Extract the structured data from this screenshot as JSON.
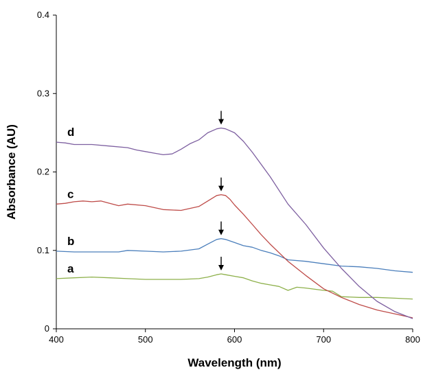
{
  "chart_data": {
    "type": "line",
    "title": "",
    "xlabel": "Wavelength (nm)",
    "ylabel": "Absorbance (AU)",
    "xlim": [
      400,
      800
    ],
    "ylim": [
      0,
      0.4
    ],
    "xticks": [
      "400",
      "500",
      "600",
      "700",
      "800"
    ],
    "yticks": [
      "0",
      "0.1",
      "0.2",
      "0.3",
      "0.4"
    ],
    "grid": false,
    "legend": "none",
    "series": [
      {
        "name": "a",
        "color": "#8DB04A",
        "x": [
          400,
          420,
          440,
          460,
          480,
          500,
          520,
          540,
          560,
          570,
          580,
          585,
          590,
          600,
          610,
          620,
          630,
          640,
          650,
          660,
          670,
          680,
          700,
          710,
          720,
          740,
          760,
          780,
          800
        ],
        "y": [
          0.064,
          0.065,
          0.066,
          0.065,
          0.064,
          0.063,
          0.063,
          0.063,
          0.064,
          0.066,
          0.069,
          0.07,
          0.069,
          0.067,
          0.065,
          0.061,
          0.058,
          0.056,
          0.054,
          0.049,
          0.053,
          0.052,
          0.049,
          0.048,
          0.041,
          0.04,
          0.04,
          0.039,
          0.038
        ]
      },
      {
        "name": "b",
        "color": "#4A7EBB",
        "x": [
          400,
          420,
          440,
          460,
          470,
          480,
          500,
          520,
          540,
          560,
          570,
          580,
          585,
          590,
          600,
          610,
          620,
          630,
          640,
          650,
          660,
          680,
          700,
          720,
          740,
          760,
          780,
          800
        ],
        "y": [
          0.099,
          0.098,
          0.098,
          0.098,
          0.098,
          0.1,
          0.099,
          0.098,
          0.099,
          0.102,
          0.108,
          0.114,
          0.115,
          0.114,
          0.11,
          0.106,
          0.104,
          0.1,
          0.097,
          0.093,
          0.088,
          0.086,
          0.083,
          0.08,
          0.079,
          0.077,
          0.074,
          0.072
        ]
      },
      {
        "name": "c",
        "color": "#BE4B48",
        "x": [
          400,
          410,
          420,
          430,
          440,
          450,
          460,
          470,
          480,
          500,
          520,
          540,
          560,
          570,
          580,
          585,
          590,
          595,
          600,
          610,
          620,
          630,
          640,
          660,
          680,
          700,
          720,
          740,
          760,
          780,
          800
        ],
        "y": [
          0.159,
          0.16,
          0.162,
          0.163,
          0.162,
          0.163,
          0.16,
          0.157,
          0.159,
          0.157,
          0.152,
          0.151,
          0.156,
          0.163,
          0.17,
          0.171,
          0.17,
          0.165,
          0.158,
          0.146,
          0.133,
          0.12,
          0.108,
          0.086,
          0.068,
          0.051,
          0.04,
          0.031,
          0.024,
          0.019,
          0.014
        ]
      },
      {
        "name": "d",
        "color": "#7D5FA0",
        "x": [
          400,
          410,
          420,
          440,
          460,
          480,
          490,
          500,
          510,
          520,
          530,
          540,
          550,
          560,
          570,
          580,
          585,
          590,
          600,
          610,
          620,
          640,
          660,
          680,
          700,
          720,
          740,
          760,
          780,
          800
        ],
        "y": [
          0.238,
          0.237,
          0.235,
          0.235,
          0.233,
          0.231,
          0.228,
          0.226,
          0.224,
          0.222,
          0.223,
          0.229,
          0.236,
          0.241,
          0.25,
          0.255,
          0.256,
          0.255,
          0.25,
          0.239,
          0.225,
          0.194,
          0.159,
          0.133,
          0.103,
          0.077,
          0.054,
          0.035,
          0.022,
          0.013
        ]
      }
    ],
    "annotations": [
      {
        "type": "arrow",
        "series": "a",
        "x": 585
      },
      {
        "type": "arrow",
        "series": "b",
        "x": 585
      },
      {
        "type": "arrow",
        "series": "c",
        "x": 585
      },
      {
        "type": "arrow",
        "series": "d",
        "x": 585
      }
    ]
  }
}
